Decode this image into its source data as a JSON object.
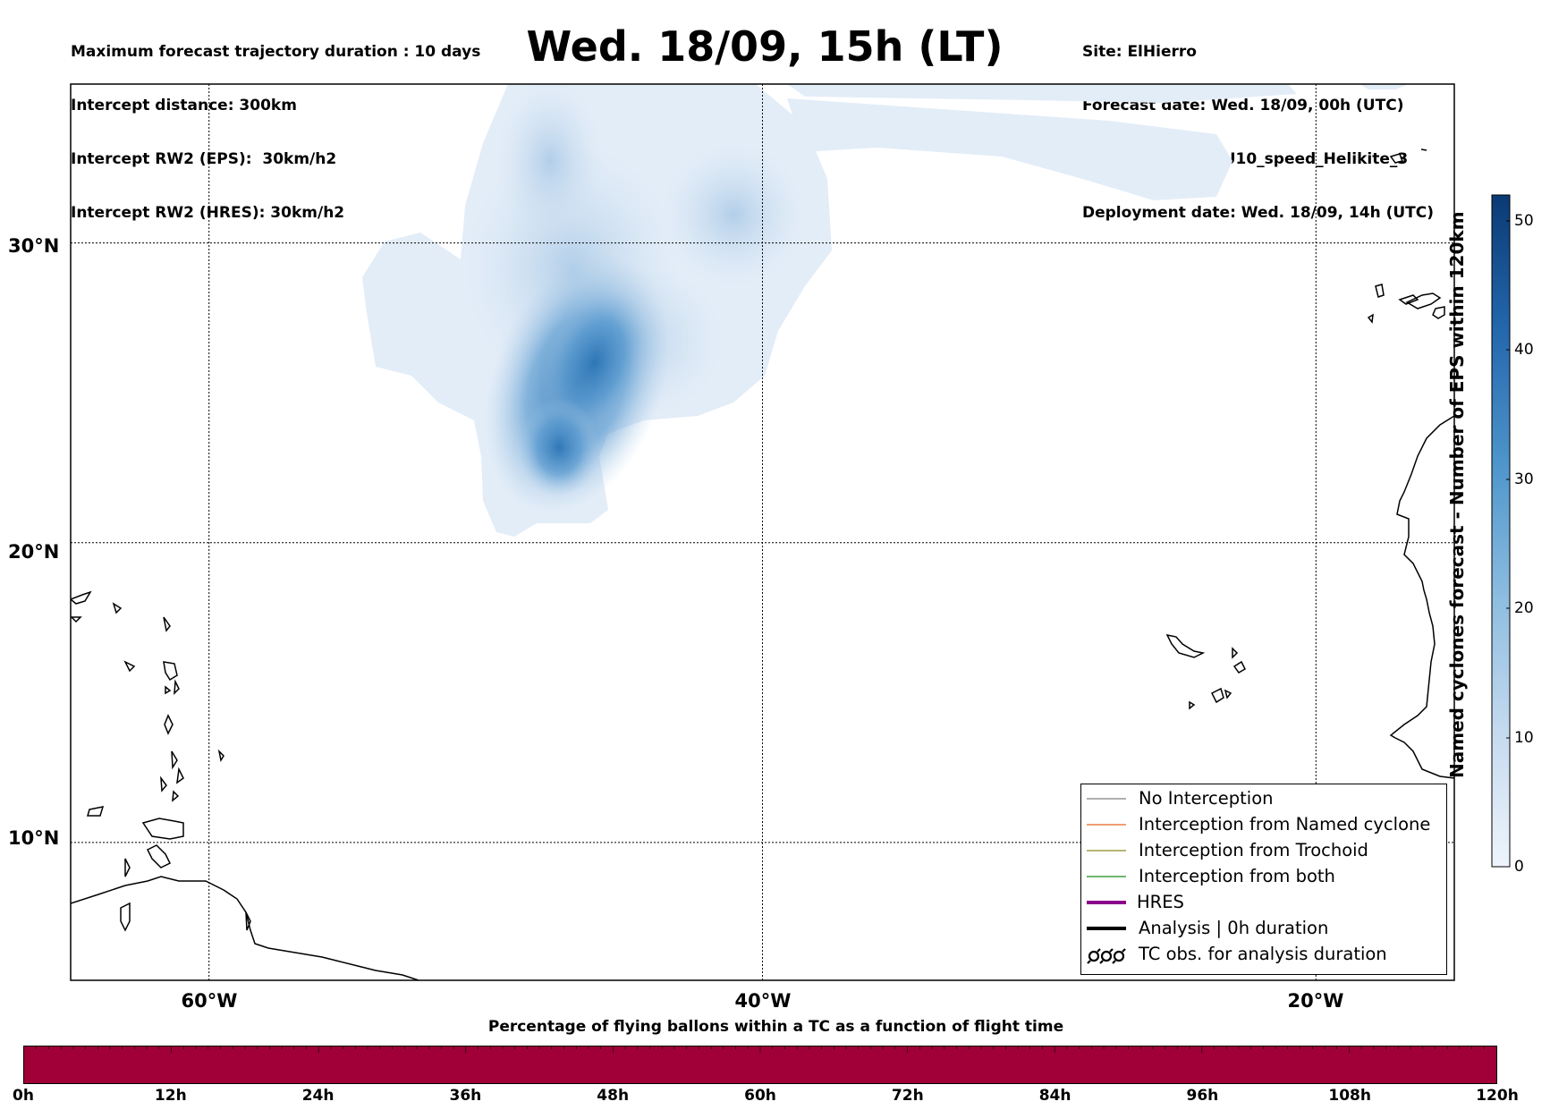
{
  "header_left": {
    "line1": "Maximum forecast trajectory duration : 10 days",
    "line2": "Intercept distance: 300km",
    "line3": "Intercept RW2 (EPS):  30km/h2",
    "line4": "Intercept RW2 (HRES): 30km/h2"
  },
  "title": "Wed. 18/09, 15h (LT)",
  "header_right": {
    "line1": "Site: ElHierro",
    "line2": "Forecast date: Wed. 18/09, 00h (UTC)",
    "line3": "Speed function: U10_speed_Helikite_3",
    "line4": "Deployment date: Wed. 18/09, 14h (UTC)"
  },
  "map": {
    "lat_labels": [
      "30°N",
      "20°N",
      "10°N"
    ],
    "lon_labels": [
      "60°W",
      "40°W",
      "20°W"
    ],
    "lat_values": [
      30,
      20,
      10
    ],
    "lon_values": [
      -60,
      -40,
      -20
    ],
    "extent": {
      "lon_min": -65,
      "lon_max": -15,
      "lat_min": 5.4,
      "lat_max": 35.3
    },
    "density_color_low": "#e3edf8",
    "density_color_high": "#2b78b8"
  },
  "legend": {
    "items": [
      {
        "label": "No Interception",
        "color": "#808080",
        "style": "thin"
      },
      {
        "label": "Interception from Named cyclone",
        "color": "#e8641c",
        "style": "thin"
      },
      {
        "label": "Interception from Trochoid",
        "color": "#8a8a1e",
        "style": "thin"
      },
      {
        "label": "Interception from both",
        "color": "#1a8a1a",
        "style": "thin"
      },
      {
        "label": "HRES",
        "color": "#8b008b",
        "style": "thick"
      },
      {
        "label": "Analysis | 0h duration",
        "color": "#000000",
        "style": "thick"
      },
      {
        "label": "TC obs. for analysis duration",
        "color": "#000000",
        "style": "tc-symbol"
      }
    ]
  },
  "colorbar": {
    "label": "Named cyclones forecast - Number of EPS within 120km",
    "ticks": [
      "0",
      "10",
      "20",
      "30",
      "40",
      "50"
    ],
    "min": 0,
    "max": 52,
    "color_low": "#e6eef8",
    "color_high": "#0b3f7a"
  },
  "timebar": {
    "title": "Percentage of flying ballons within a TC as a function of flight time",
    "ticks": [
      "0h",
      "12h",
      "24h",
      "36h",
      "48h",
      "60h",
      "72h",
      "84h",
      "96h",
      "108h",
      "120h"
    ],
    "color": "#a00037"
  }
}
